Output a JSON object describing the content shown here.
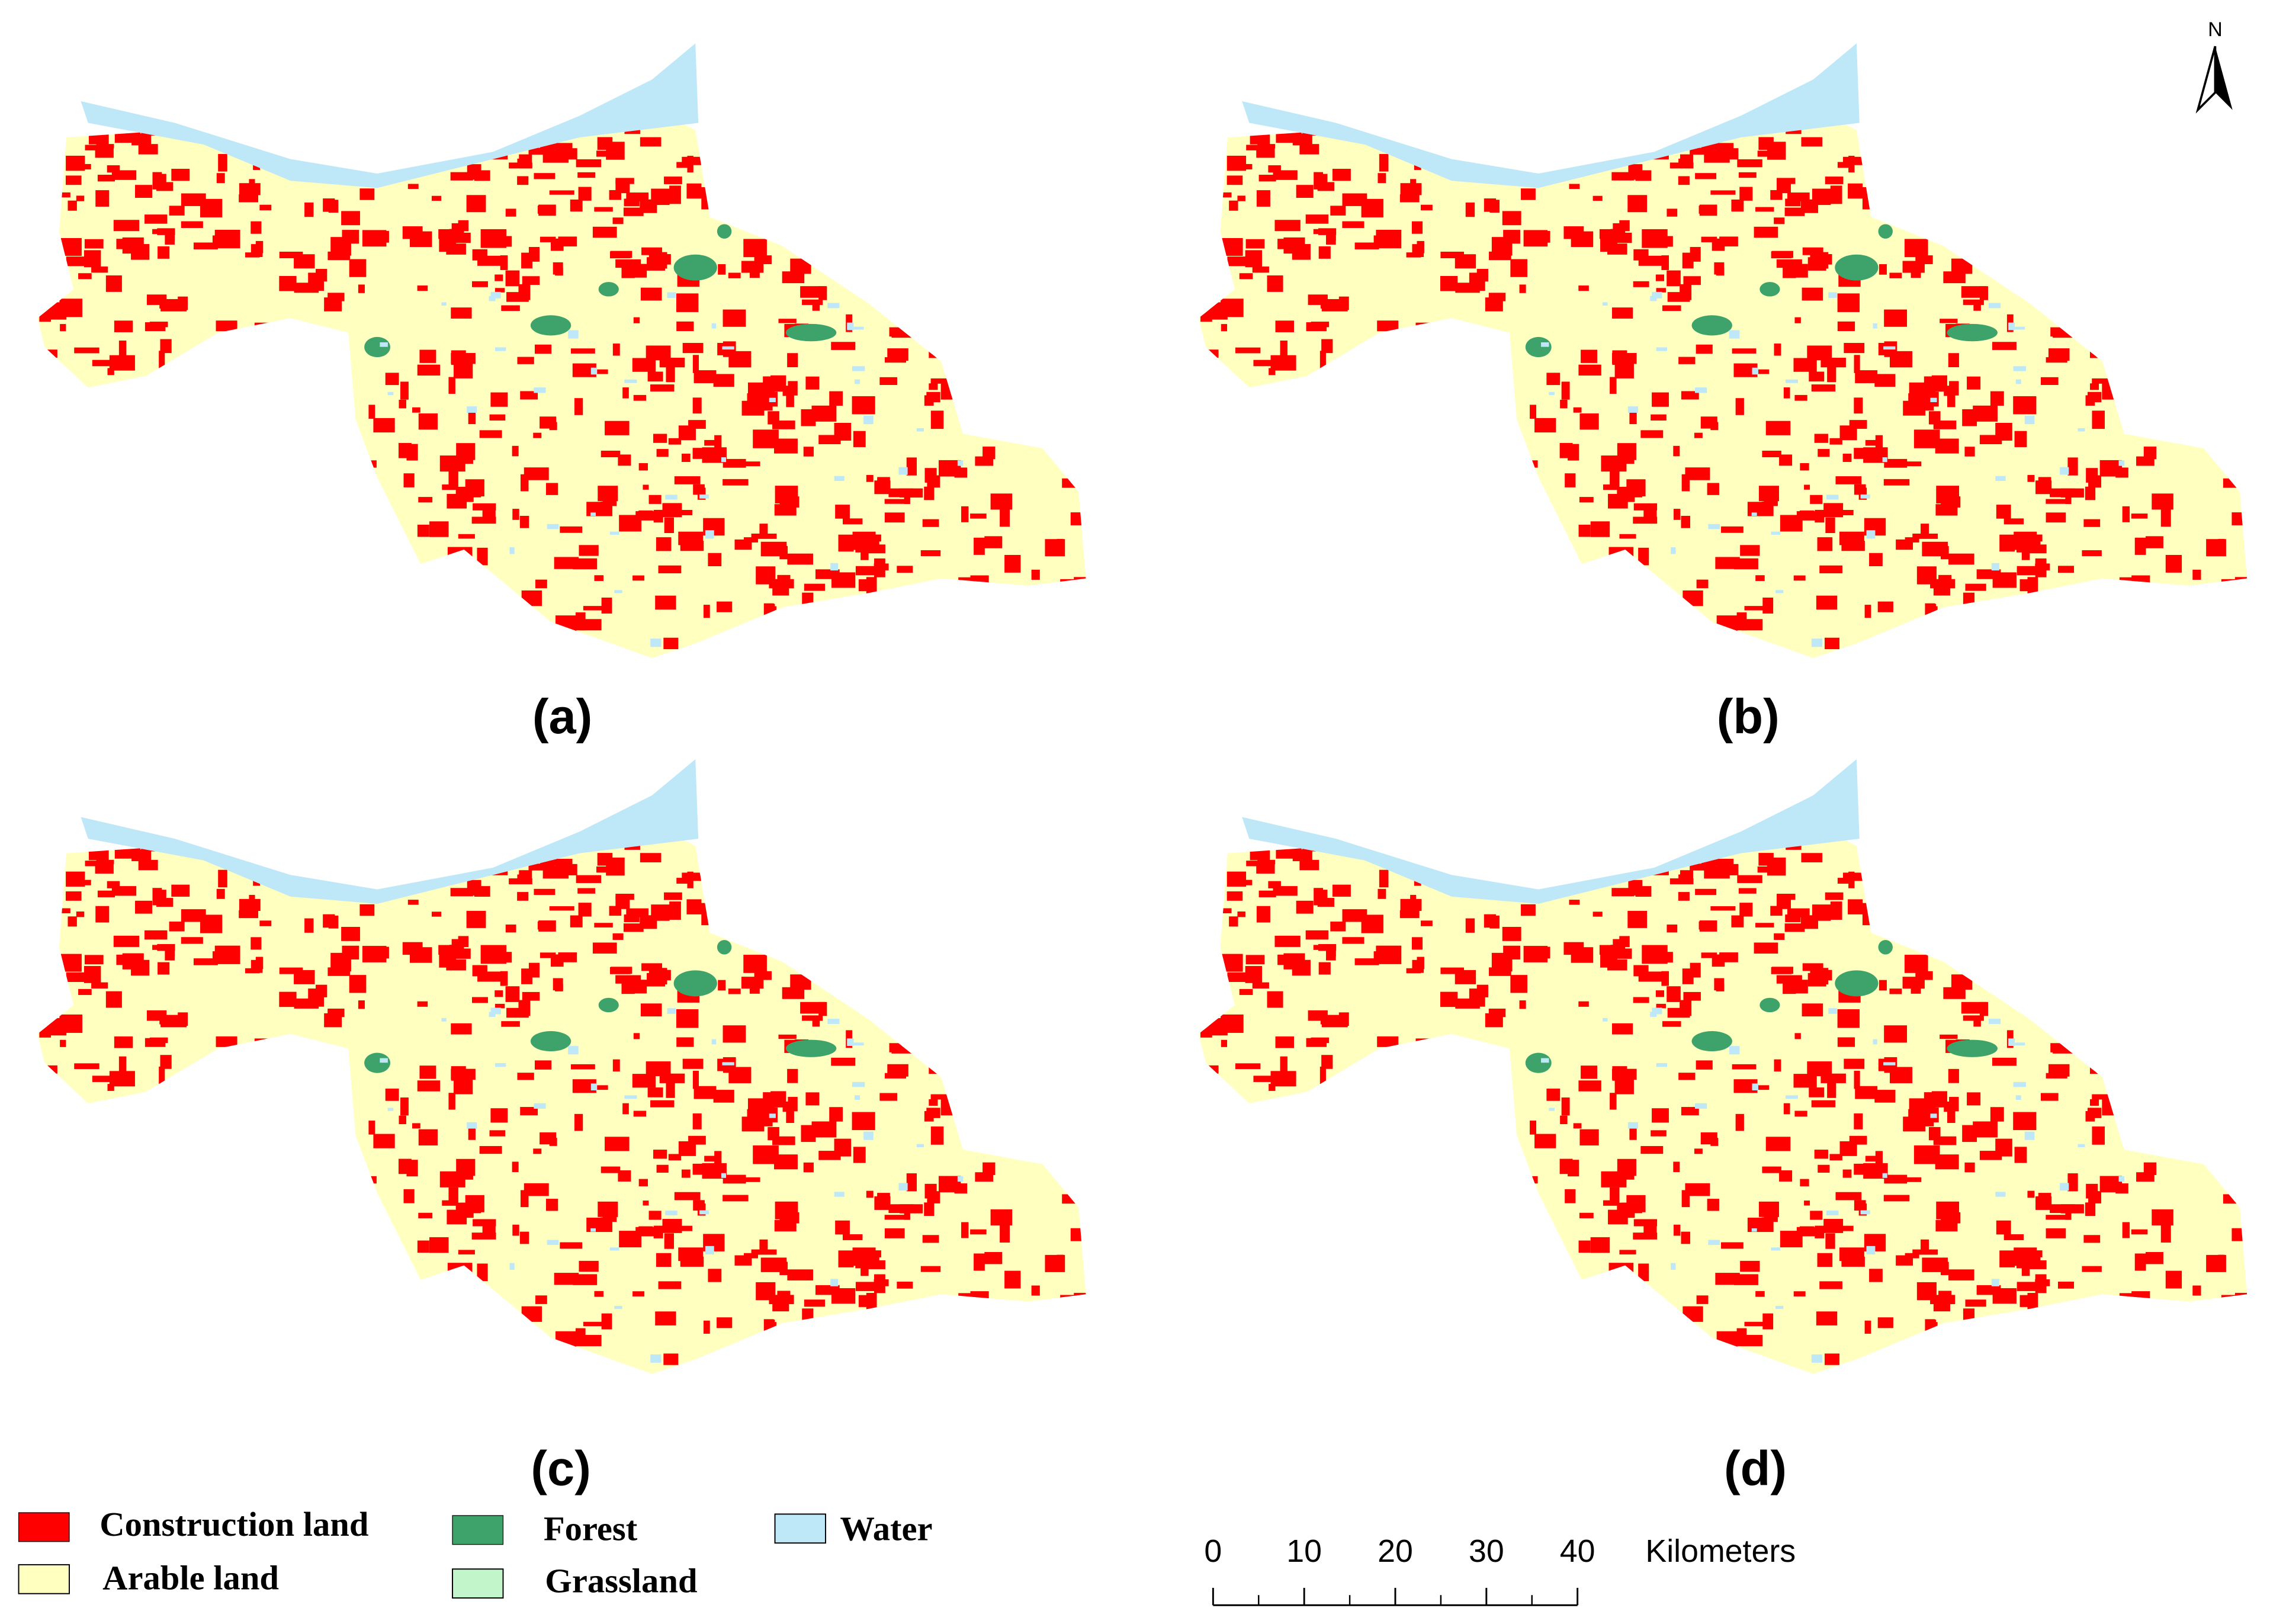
{
  "north_arrow": "N",
  "panels": [
    "(a)",
    "(b)",
    "(c)",
    "(d)"
  ],
  "legend": [
    "Construction land",
    "Arable land",
    "Forest",
    "Grassland",
    "Water"
  ],
  "scale_bar": {
    "ticks": [
      0,
      10,
      20,
      30,
      40
    ],
    "unit": "Kilometers"
  }
}
